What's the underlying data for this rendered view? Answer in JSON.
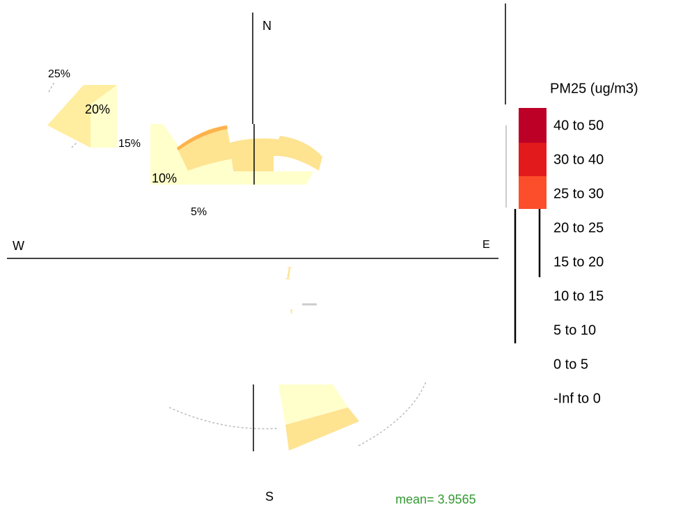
{
  "compass": {
    "north": "N",
    "west": "W",
    "east": "E",
    "south": "S"
  },
  "rings": [
    "25%",
    "20%",
    "15%",
    "10%",
    "5%"
  ],
  "legend": {
    "title": "PM25 (ug/m3)",
    "entries": [
      "40 to 50",
      "30 to 40",
      "25 to 30",
      "20 to 25",
      "15 to 20",
      "10 to 15",
      "5 to 10",
      "0 to 5",
      "-Inf to 0"
    ]
  },
  "footer": "mean= 3.9565"
}
